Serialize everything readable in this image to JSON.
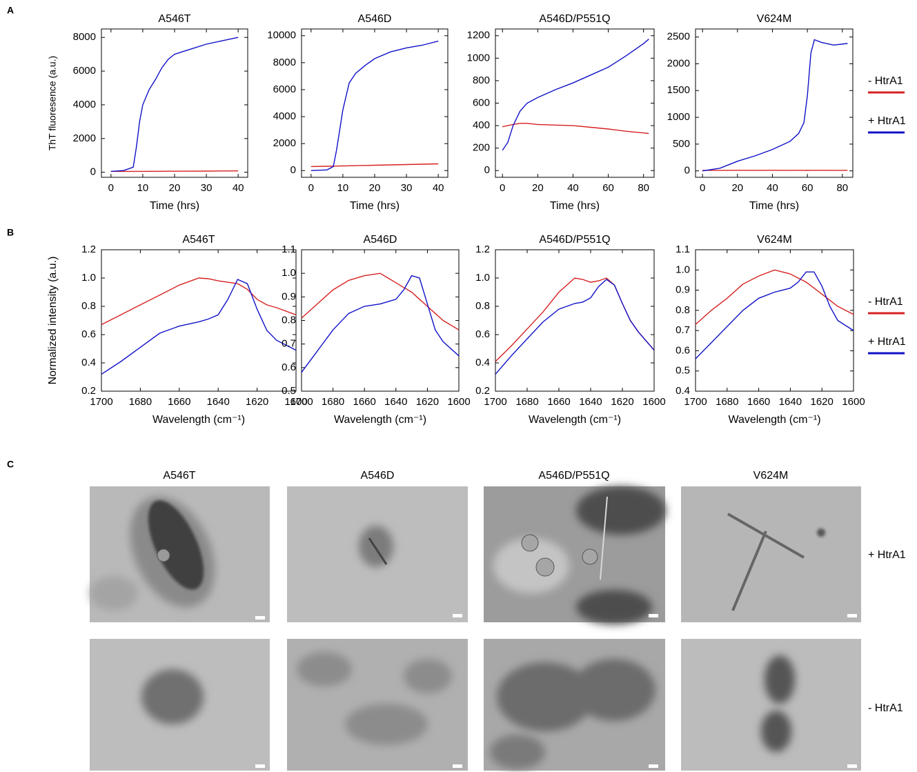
{
  "panels": [
    "A",
    "B",
    "C"
  ],
  "chart_data": [
    {
      "type": "line",
      "title": "A546T",
      "xlabel": "Time (hrs)",
      "ylabel": "ThT fluoresence (a.u.)",
      "x": [
        0,
        4,
        7,
        8,
        9,
        10,
        12,
        14,
        16,
        18,
        20,
        25,
        30,
        35,
        40
      ],
      "series": [
        {
          "color": "#d62020",
          "values": [
            50,
            50,
            52,
            52,
            53,
            53,
            55,
            57,
            58,
            60,
            62,
            66,
            70,
            75,
            80
          ]
        },
        {
          "color": "#1010c8",
          "values": [
            50,
            100,
            300,
            1500,
            3000,
            4000,
            4900,
            5500,
            6200,
            6700,
            7000,
            7300,
            7600,
            7800,
            8000
          ]
        }
      ],
      "xlim": [
        -3,
        43
      ],
      "ylim": [
        -300,
        8500
      ],
      "xticks": [
        0,
        10,
        20,
        30,
        40
      ],
      "yticks": [
        0,
        2000,
        4000,
        6000,
        8000
      ]
    },
    {
      "type": "line",
      "title": "A546D",
      "xlabel": "Time (hrs)",
      "x": [
        0,
        5,
        7,
        8,
        9,
        10,
        11,
        12,
        14,
        17,
        20,
        25,
        30,
        35,
        40
      ],
      "series": [
        {
          "color": "#d62020",
          "values": [
            300,
            320,
            330,
            335,
            340,
            345,
            350,
            355,
            365,
            380,
            395,
            420,
            445,
            470,
            500
          ]
        },
        {
          "color": "#1010c8",
          "values": [
            0,
            50,
            300,
            1500,
            3000,
            4500,
            5500,
            6500,
            7200,
            7800,
            8300,
            8800,
            9100,
            9300,
            9600
          ]
        }
      ],
      "xlim": [
        -3,
        43
      ],
      "ylim": [
        -500,
        10500
      ],
      "xticks": [
        0,
        10,
        20,
        30,
        40
      ],
      "yticks": [
        0,
        2000,
        4000,
        6000,
        8000,
        10000
      ]
    },
    {
      "type": "line",
      "title": "A546D/P551Q",
      "xlabel": "Time (hrs)",
      "x": [
        0,
        3,
        6,
        10,
        14,
        20,
        30,
        40,
        50,
        60,
        70,
        80,
        83
      ],
      "series": [
        {
          "color": "#d62020",
          "values": [
            390,
            400,
            410,
            420,
            420,
            410,
            405,
            400,
            385,
            370,
            350,
            335,
            330
          ]
        },
        {
          "color": "#1010c8",
          "values": [
            180,
            250,
            400,
            530,
            600,
            650,
            720,
            780,
            850,
            920,
            1020,
            1130,
            1170
          ]
        }
      ],
      "xlim": [
        -4,
        86
      ],
      "ylim": [
        -60,
        1260
      ],
      "xticks": [
        0,
        20,
        40,
        60,
        80
      ],
      "yticks": [
        0,
        200,
        400,
        600,
        800,
        1000,
        1200
      ]
    },
    {
      "type": "line",
      "title": "V624M",
      "xlabel": "Time (hrs)",
      "legend": "right",
      "x": [
        0,
        10,
        20,
        30,
        40,
        50,
        55,
        58,
        60,
        62,
        64,
        68,
        75,
        83
      ],
      "series": [
        {
          "name": "- HtrA1",
          "color": "#d62020",
          "values": [
            10,
            10,
            12,
            10,
            11,
            10,
            12,
            10,
            11,
            10,
            10,
            12,
            10,
            10
          ]
        },
        {
          "name": "+ HtrA1",
          "color": "#1010c8",
          "values": [
            0,
            50,
            180,
            280,
            400,
            550,
            700,
            900,
            1400,
            2200,
            2450,
            2400,
            2350,
            2380
          ]
        }
      ],
      "xlim": [
        -4,
        86
      ],
      "ylim": [
        -120,
        2650
      ],
      "xticks": [
        0,
        20,
        40,
        60,
        80
      ],
      "yticks": [
        0,
        500,
        1000,
        1500,
        2000,
        2500
      ]
    },
    {
      "type": "line",
      "title": "A546T",
      "xlabel": "Wavelength (cm⁻¹)",
      "ylabel": "Normalized intensity (a.u.)",
      "x": [
        1700,
        1690,
        1680,
        1670,
        1660,
        1650,
        1645,
        1640,
        1635,
        1630,
        1625,
        1620,
        1615,
        1610,
        1600
      ],
      "series": [
        {
          "color": "#d62020",
          "values": [
            0.67,
            0.74,
            0.81,
            0.88,
            0.95,
            1.0,
            0.995,
            0.98,
            0.97,
            0.96,
            0.92,
            0.85,
            0.81,
            0.79,
            0.74
          ]
        },
        {
          "color": "#1010c8",
          "values": [
            0.32,
            0.41,
            0.51,
            0.61,
            0.66,
            0.69,
            0.71,
            0.74,
            0.85,
            0.99,
            0.96,
            0.78,
            0.63,
            0.56,
            0.49
          ]
        }
      ],
      "xlim": [
        1700,
        1600
      ],
      "ylim": [
        0.2,
        1.2
      ],
      "xticks": [
        1700,
        1680,
        1660,
        1640,
        1620,
        1600
      ],
      "yticks": [
        0.2,
        0.4,
        0.6,
        0.8,
        {
          "value": 1,
          "label": "1.0"
        },
        1.2
      ]
    },
    {
      "type": "line",
      "title": "A546D",
      "xlabel": "Wavelength (cm⁻¹)",
      "x": [
        1700,
        1690,
        1680,
        1670,
        1660,
        1650,
        1645,
        1640,
        1635,
        1630,
        1625,
        1620,
        1615,
        1610,
        1600
      ],
      "series": [
        {
          "color": "#d62020",
          "values": [
            0.81,
            0.87,
            0.93,
            0.97,
            0.99,
            1.0,
            0.98,
            0.96,
            0.94,
            0.92,
            0.89,
            0.86,
            0.83,
            0.8,
            0.76
          ]
        },
        {
          "color": "#1010c8",
          "values": [
            0.58,
            0.67,
            0.76,
            0.83,
            0.86,
            0.87,
            0.88,
            0.89,
            0.93,
            0.99,
            0.98,
            0.87,
            0.76,
            0.71,
            0.65
          ]
        }
      ],
      "xlim": [
        1700,
        1600
      ],
      "ylim": [
        0.5,
        1.1
      ],
      "xticks": [
        1700,
        1680,
        1660,
        1640,
        1620,
        1600
      ],
      "yticks": [
        0.5,
        0.6,
        0.7,
        0.8,
        0.9,
        {
          "value": 1,
          "label": "1.0"
        },
        1.1
      ]
    },
    {
      "type": "line",
      "title": "A546D/P551Q",
      "xlabel": "Wavelength (cm⁻¹)",
      "x": [
        1700,
        1690,
        1680,
        1670,
        1660,
        1650,
        1645,
        1640,
        1635,
        1630,
        1625,
        1620,
        1615,
        1610,
        1600
      ],
      "series": [
        {
          "color": "#d62020",
          "values": [
            0.41,
            0.52,
            0.64,
            0.76,
            0.9,
            1.0,
            0.99,
            0.97,
            0.98,
            1.0,
            0.95,
            0.82,
            0.7,
            0.62,
            0.49
          ]
        },
        {
          "color": "#1010c8",
          "values": [
            0.32,
            0.45,
            0.57,
            0.69,
            0.78,
            0.82,
            0.83,
            0.86,
            0.94,
            0.99,
            0.95,
            0.82,
            0.7,
            0.62,
            0.49
          ]
        }
      ],
      "xlim": [
        1700,
        1600
      ],
      "ylim": [
        0.2,
        1.2
      ],
      "xticks": [
        1700,
        1680,
        1660,
        1640,
        1620,
        1600
      ],
      "yticks": [
        0.2,
        0.4,
        0.6,
        0.8,
        {
          "value": 1,
          "label": "1.0"
        },
        1.2
      ]
    },
    {
      "type": "line",
      "title": "V624M",
      "xlabel": "Wavelength (cm⁻¹)",
      "legend": "right",
      "x": [
        1700,
        1690,
        1680,
        1670,
        1660,
        1650,
        1645,
        1640,
        1635,
        1630,
        1625,
        1620,
        1615,
        1610,
        1600
      ],
      "series": [
        {
          "name": "- HtrA1",
          "color": "#d62020",
          "values": [
            0.73,
            0.8,
            0.86,
            0.93,
            0.97,
            1.0,
            0.99,
            0.98,
            0.96,
            0.94,
            0.91,
            0.88,
            0.85,
            0.82,
            0.78
          ]
        },
        {
          "name": "+ HtrA1",
          "color": "#1010c8",
          "values": [
            0.56,
            0.64,
            0.72,
            0.8,
            0.86,
            0.89,
            0.9,
            0.91,
            0.94,
            0.99,
            0.99,
            0.92,
            0.82,
            0.75,
            0.7
          ]
        }
      ],
      "xlim": [
        1700,
        1600
      ],
      "ylim": [
        0.4,
        1.1
      ],
      "xticks": [
        1700,
        1680,
        1660,
        1640,
        1620,
        1600
      ],
      "yticks": [
        0.4,
        0.5,
        0.6,
        0.7,
        0.8,
        0.9,
        {
          "value": 1,
          "label": "1.0"
        },
        1.1
      ]
    }
  ],
  "micrographs": {
    "titles": [
      "A546T",
      "A546D",
      "A546D/P551Q",
      "V624M"
    ],
    "rows": [
      "+ HtrA1",
      "- HtrA1"
    ]
  }
}
